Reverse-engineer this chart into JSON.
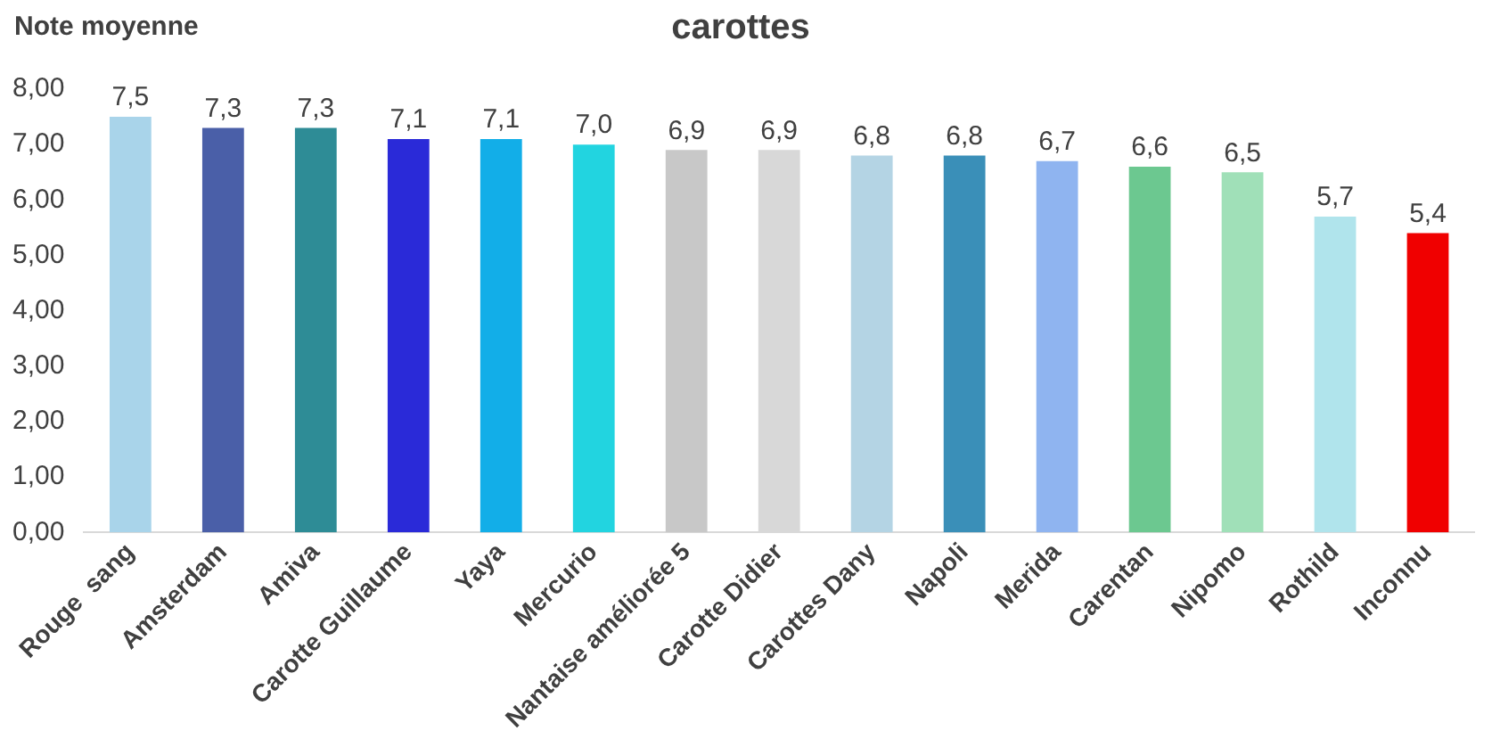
{
  "chart_data": {
    "type": "bar",
    "title": "carottes",
    "ylabel": "Note moyenne",
    "categories": [
      "Rouge  sang",
      "Amsterdam",
      "Amiva",
      "Carotte Guillaume",
      "Yaya",
      "Mercurio",
      "Nantaise améliorée 5",
      "Carotte Didier",
      "Carottes Dany",
      "Napoli",
      "Merida",
      "Carentan",
      "Nipomo",
      "Rothild",
      "Inconnu"
    ],
    "values": [
      7.5,
      7.3,
      7.3,
      7.1,
      7.1,
      7.0,
      6.9,
      6.9,
      6.8,
      6.8,
      6.7,
      6.6,
      6.5,
      5.7,
      5.4
    ],
    "value_labels": [
      "7,5",
      "7,3",
      "7,3",
      "7,1",
      "7,1",
      "7,0",
      "6,9",
      "6,9",
      "6,8",
      "6,8",
      "6,7",
      "6,6",
      "6,5",
      "5,7",
      "5,4"
    ],
    "colors": [
      "#a9d4ea",
      "#4a5fa8",
      "#2e8c96",
      "#2a2ad8",
      "#12aee8",
      "#22d4e0",
      "#c8c8c8",
      "#d8d8d8",
      "#b4d4e4",
      "#3a8fb8",
      "#8fb4f0",
      "#6cc890",
      "#a0e0b8",
      "#b0e4ec",
      "#f00000"
    ],
    "ylim": [
      0,
      8
    ],
    "yticks": [
      {
        "value": 0,
        "label": "0,00"
      },
      {
        "value": 1,
        "label": "1,00"
      },
      {
        "value": 2,
        "label": "2,00"
      },
      {
        "value": 3,
        "label": "3,00"
      },
      {
        "value": 4,
        "label": "4,00"
      },
      {
        "value": 5,
        "label": "5,00"
      },
      {
        "value": 6,
        "label": "6,00"
      },
      {
        "value": 7,
        "label": "7,00"
      },
      {
        "value": 8,
        "label": "8,00"
      }
    ],
    "grid": false,
    "legend": false
  }
}
